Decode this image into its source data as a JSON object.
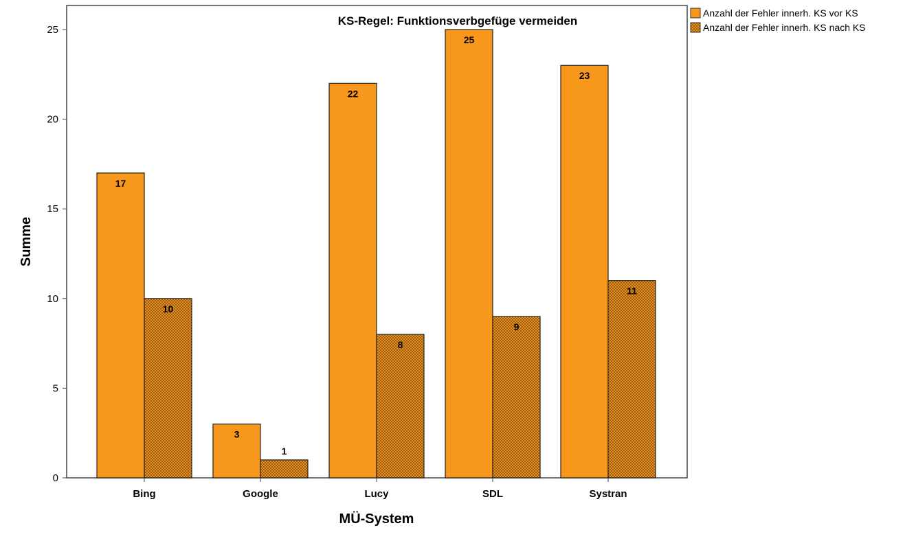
{
  "chart_data": {
    "type": "bar",
    "title": "KS-Regel: Funktionsverbgefüge vermeiden",
    "xlabel": "MÜ-System",
    "ylabel": "Summe",
    "categories": [
      "Bing",
      "Google",
      "Lucy",
      "SDL",
      "Systran"
    ],
    "series": [
      {
        "name": "Anzahl der Fehler innerh. KS vor KS",
        "values": [
          17,
          3,
          22,
          25,
          23
        ],
        "color": "#F7981D",
        "pattern": "solid"
      },
      {
        "name": "Anzahl der Fehler innerh. KS nach KS",
        "values": [
          10,
          1,
          8,
          9,
          11
        ],
        "color": "#F7981D",
        "pattern": "crosshatch"
      }
    ],
    "ylim": [
      0,
      25
    ],
    "yticks": [
      0,
      5,
      10,
      15,
      20,
      25
    ],
    "grid": false,
    "legend_position": "top-right outside",
    "data_labels": true
  }
}
